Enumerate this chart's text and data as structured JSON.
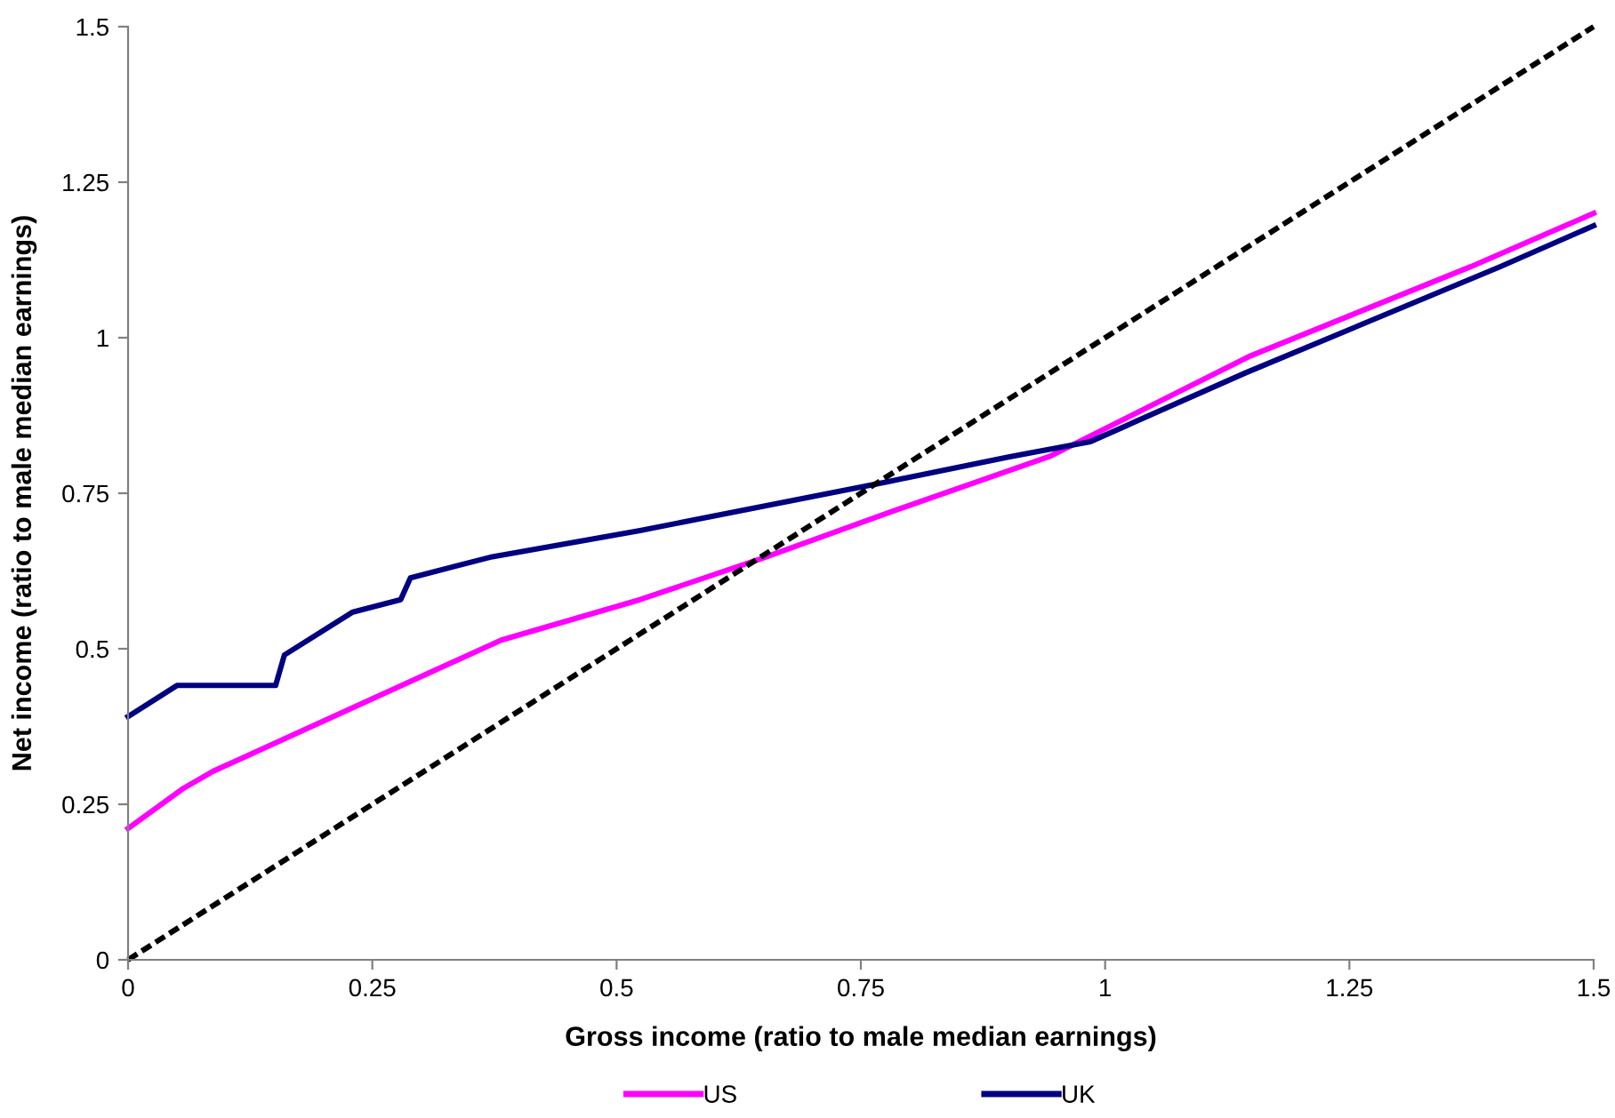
{
  "chart_data": {
    "type": "line",
    "xlabel": "Gross income (ratio to male median earnings)",
    "ylabel": "Net income (ratio to male median earnings)",
    "xlim": [
      0,
      1.5
    ],
    "ylim": [
      0,
      1.5
    ],
    "xticks": [
      0,
      0.25,
      0.5,
      0.75,
      1,
      1.25,
      1.5
    ],
    "yticks": [
      0,
      0.25,
      0.5,
      0.75,
      1,
      1.25,
      1.5
    ],
    "grid": false,
    "legend": "bottom",
    "marker": "none",
    "series": [
      {
        "name": "US",
        "color": "#ff00ff",
        "line_style": "solid",
        "x": [
          0,
          0.057,
          0.087,
          0.382,
          0.524,
          0.65,
          0.779,
          0.943,
          1.149,
          1.374,
          1.5
        ],
        "values": [
          0.211,
          0.276,
          0.303,
          0.514,
          0.579,
          0.646,
          0.719,
          0.809,
          0.971,
          1.114,
          1.2
        ]
      },
      {
        "name": "UK",
        "color": "#000080",
        "line_style": "solid",
        "x": [
          0,
          0.05,
          0.151,
          0.16,
          0.23,
          0.279,
          0.289,
          0.373,
          0.524,
          0.779,
          0.9,
          0.985,
          1.143,
          1.404,
          1.5
        ],
        "values": [
          0.391,
          0.441,
          0.441,
          0.49,
          0.559,
          0.579,
          0.614,
          0.648,
          0.69,
          0.769,
          0.808,
          0.833,
          0.943,
          1.114,
          1.18
        ]
      },
      {
        "color": "#000000",
        "line_style": "dashed",
        "x": [
          0,
          1.5
        ],
        "values": [
          0,
          1.5
        ]
      }
    ]
  }
}
